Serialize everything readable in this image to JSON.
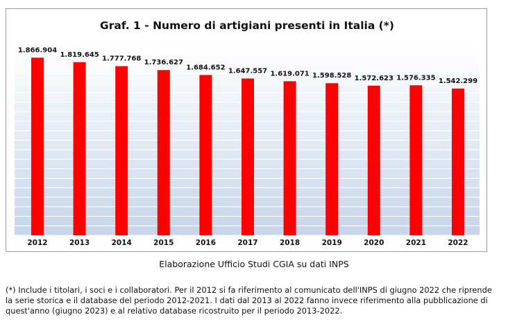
{
  "chart_data": {
    "type": "bar",
    "title": "Graf. 1 - Numero di artigiani presenti in Italia (*)",
    "categories": [
      "2012",
      "2013",
      "2014",
      "2015",
      "2016",
      "2017",
      "2018",
      "2019",
      "2020",
      "2021",
      "2022"
    ],
    "values": [
      1866904,
      1819645,
      1777768,
      1736627,
      1684652,
      1647557,
      1619071,
      1598528,
      1572623,
      1576335,
      1542299
    ],
    "value_labels": [
      "1.866.904",
      "1.819.645",
      "1.777.768",
      "1.736.627",
      "1.684.652",
      "1.647.557",
      "1.619.071",
      "1.598.528",
      "1.572.623",
      "1.576.335",
      "1.542.299"
    ],
    "xlabel": "",
    "ylabel": "",
    "ylim": [
      0,
      2000000
    ],
    "grid": true,
    "legend": "none",
    "bar_color": "#ff0000",
    "plot_background": "#dce6f2"
  },
  "source": "Elaborazione Ufficio Studi CGIA su dati INPS",
  "footnote": "(*) Include i titolari, i soci e i collaboratori. Per il 2012 si fa riferimento al comunicato dell'INPS di giugno 2022 che riprende la serie storica e il database del periodo 2012-2021. I dati dal 2013 al 2022 fanno invece riferimento alla pubblicazione di quest'anno (giugno 2023) e al relativo database ricostruito per il periodo 2013-2022."
}
